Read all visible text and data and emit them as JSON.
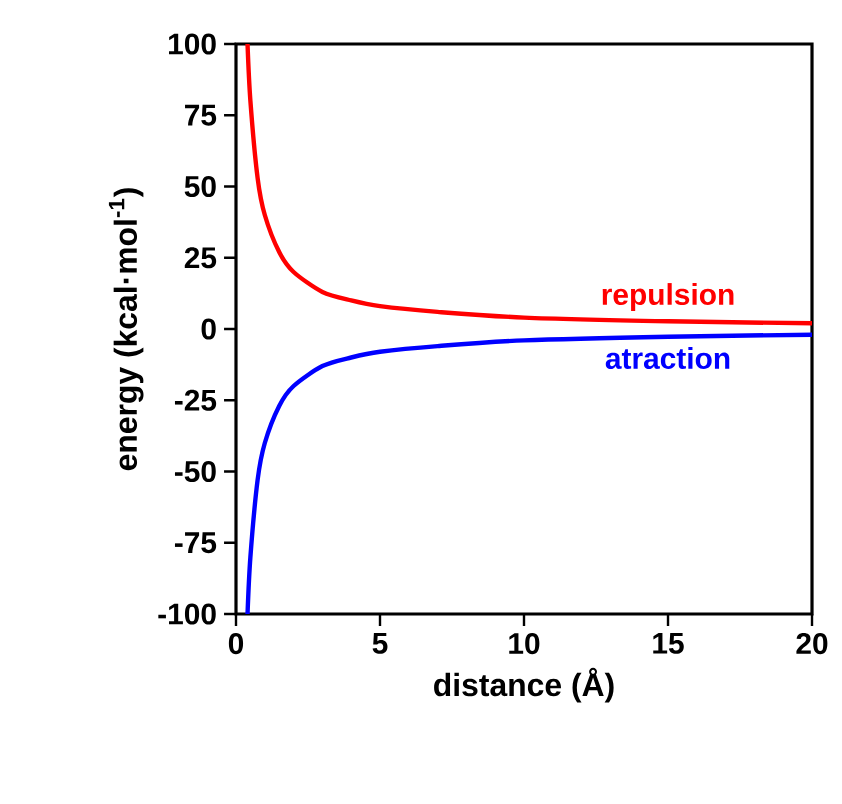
{
  "chart_data": {
    "type": "line",
    "xlabel": "distance (Å)",
    "ylabel": "energy (kcal·mol$^{-1}$)",
    "xlim": [
      0,
      20
    ],
    "ylim": [
      -100,
      100
    ],
    "xticks": [
      0,
      5,
      10,
      15,
      20
    ],
    "yticks": [
      -100,
      -75,
      -50,
      -25,
      0,
      25,
      50,
      75,
      100
    ],
    "grid": false,
    "legend": false,
    "marker": "none",
    "line_style": "solid",
    "series": [
      {
        "name": "repulsion",
        "color": "#ff0000",
        "x": [
          0.4,
          0.5,
          0.75,
          1,
          1.5,
          2,
          3,
          4,
          5,
          7,
          10,
          15,
          20
        ],
        "values": [
          100,
          80,
          53,
          40,
          27,
          20,
          13,
          10,
          8,
          6,
          4,
          2.7,
          2
        ]
      },
      {
        "name": "atraction",
        "color": "#0000ff",
        "x": [
          0.4,
          0.5,
          0.75,
          1,
          1.5,
          2,
          3,
          4,
          5,
          7,
          10,
          15,
          20
        ],
        "values": [
          -100,
          -80,
          -53,
          -40,
          -27,
          -20,
          -13,
          -10,
          -8,
          -6,
          -4,
          -2.7,
          -2
        ]
      }
    ]
  }
}
